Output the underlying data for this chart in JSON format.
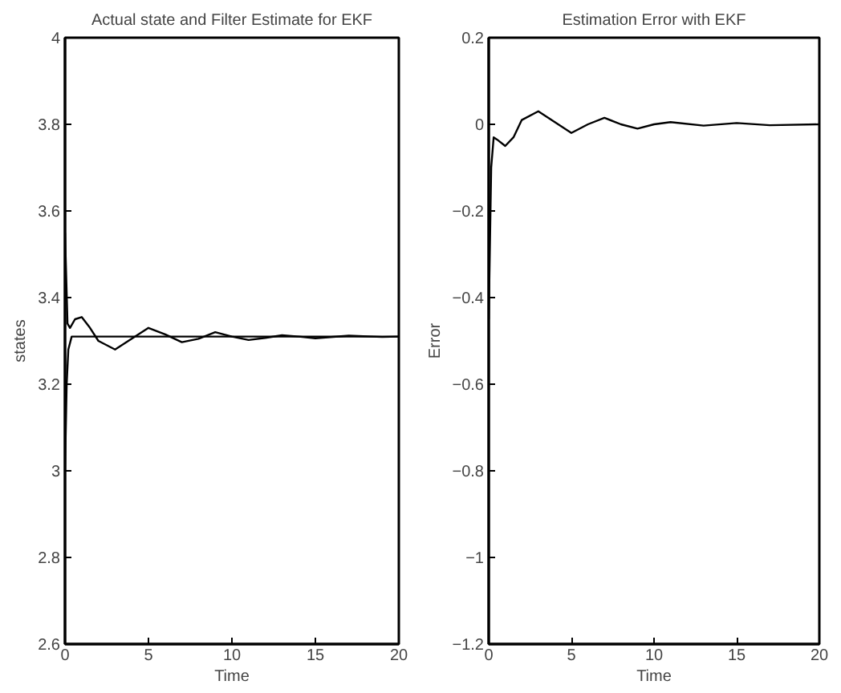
{
  "chart_data": [
    {
      "type": "line",
      "title": "Actual state and Filter Estimate for EKF",
      "xlabel": "Time",
      "ylabel": "states",
      "xlim": [
        0,
        20
      ],
      "ylim": [
        2.6,
        4
      ],
      "xticks": [
        0,
        5,
        10,
        15,
        20
      ],
      "yticks": [
        2.6,
        2.8,
        3,
        3.2,
        3.4,
        3.6,
        3.8,
        4
      ],
      "grid": false,
      "series": [
        {
          "color": "#000000",
          "x": [
            0,
            0.1,
            0.2,
            0.4,
            20
          ],
          "values": [
            3.0,
            3.2,
            3.28,
            3.31,
            3.31
          ]
        },
        {
          "color": "#000000",
          "x": [
            0,
            0.15,
            0.3,
            0.6,
            1,
            1.5,
            2,
            3,
            4,
            5,
            6,
            7,
            8,
            9,
            10,
            11,
            12,
            13,
            14,
            15,
            17,
            19,
            20
          ],
          "values": [
            3.55,
            3.34,
            3.33,
            3.35,
            3.355,
            3.33,
            3.3,
            3.28,
            3.305,
            3.33,
            3.315,
            3.297,
            3.305,
            3.32,
            3.31,
            3.302,
            3.307,
            3.313,
            3.31,
            3.306,
            3.312,
            3.309,
            3.31
          ]
        }
      ]
    },
    {
      "type": "line",
      "title": "Estimation Error with EKF",
      "xlabel": "Time",
      "ylabel": "Error",
      "xlim": [
        0,
        20
      ],
      "ylim": [
        -1.2,
        0.2
      ],
      "xticks": [
        0,
        5,
        10,
        15,
        20
      ],
      "yticks": [
        -1.2,
        -1,
        -0.8,
        -0.6,
        -0.4,
        -0.2,
        0,
        0.2
      ],
      "grid": false,
      "series": [
        {
          "color": "#000000",
          "x": [
            0,
            0.15,
            0.3,
            0.5,
            1,
            1.5,
            2,
            3,
            4,
            5,
            6,
            7,
            8,
            9,
            10,
            11,
            13,
            15,
            17,
            20
          ],
          "values": [
            -0.45,
            -0.1,
            -0.03,
            -0.035,
            -0.05,
            -0.03,
            0.01,
            0.03,
            0.005,
            -0.02,
            0.0,
            0.015,
            0.0,
            -0.01,
            0.0,
            0.005,
            -0.003,
            0.003,
            -0.002,
            0.0
          ]
        }
      ]
    }
  ]
}
